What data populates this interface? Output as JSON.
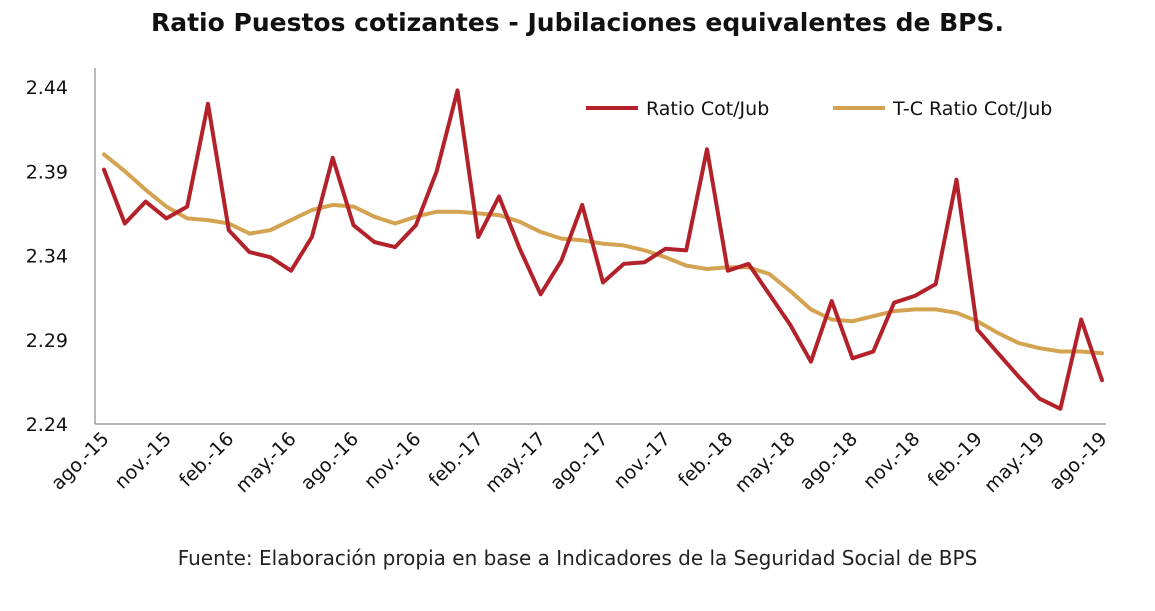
{
  "chart_data": {
    "type": "line",
    "title": "Ratio Puestos cotizantes - Jubilaciones  equivalentes de BPS.",
    "source": "Fuente: Elaboración propia en base a Indicadores de la Seguridad Social de BPS",
    "xlabel": "",
    "ylabel": "",
    "ylim": [
      2.24,
      2.44
    ],
    "y_ticks": [
      "2.24",
      "2.29",
      "2.34",
      "2.39",
      "2.44"
    ],
    "x_tick_labels": [
      "ago.-15",
      "nov.-15",
      "feb.-16",
      "may.-16",
      "ago.-16",
      "nov.-16",
      "feb.-17",
      "may.-17",
      "ago.-17",
      "nov.-17",
      "feb.-18",
      "may.-18",
      "ago.-18",
      "nov.-18",
      "feb.-19",
      "may.-19",
      "ago.-19"
    ],
    "x_count": 49,
    "legend_position": "top-right",
    "grid": false,
    "series": [
      {
        "name": "Ratio Cot/Jub",
        "color": "#b3222a",
        "values": [
          2.391,
          2.359,
          2.372,
          2.362,
          2.369,
          2.43,
          2.355,
          2.342,
          2.339,
          2.331,
          2.351,
          2.398,
          2.358,
          2.348,
          2.345,
          2.358,
          2.39,
          2.438,
          2.351,
          2.375,
          2.344,
          2.317,
          2.337,
          2.37,
          2.324,
          2.335,
          2.336,
          2.344,
          2.343,
          2.403,
          2.331,
          2.335,
          2.317,
          2.299,
          2.277,
          2.313,
          2.279,
          2.283,
          2.312,
          2.316,
          2.323,
          2.385,
          2.296,
          2.282,
          2.268,
          2.255,
          2.249,
          2.302,
          2.266
        ]
      },
      {
        "name": "T-C Ratio Cot/Jub",
        "color": "#d4a351",
        "values": [
          2.4,
          2.39,
          2.379,
          2.369,
          2.362,
          2.361,
          2.359,
          2.353,
          2.355,
          2.361,
          2.367,
          2.37,
          2.369,
          2.363,
          2.359,
          2.363,
          2.366,
          2.366,
          2.365,
          2.364,
          2.36,
          2.354,
          2.35,
          2.349,
          2.347,
          2.346,
          2.343,
          2.339,
          2.334,
          2.332,
          2.333,
          2.333,
          2.329,
          2.319,
          2.308,
          2.302,
          2.301,
          2.304,
          2.307,
          2.308,
          2.308,
          2.306,
          2.301,
          2.294,
          2.288,
          2.285,
          2.283,
          2.283,
          2.282
        ]
      }
    ]
  }
}
